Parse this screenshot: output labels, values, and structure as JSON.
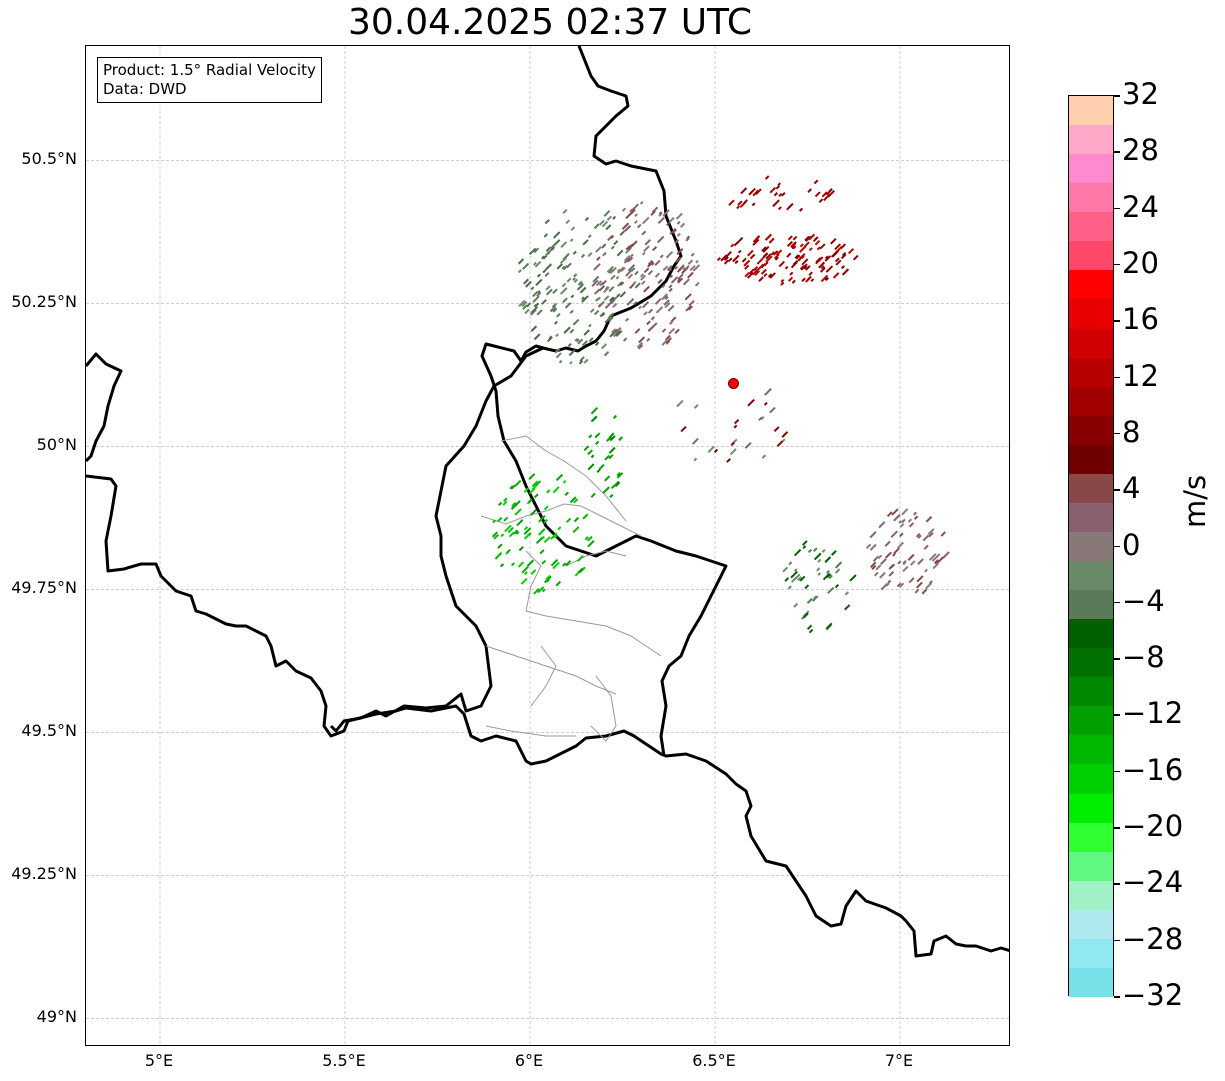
{
  "title": "30.04.2025 02:37 UTC",
  "info": {
    "product": "Product: 1.5° Radial Velocity",
    "data": "Data: DWD"
  },
  "map": {
    "lon_range": [
      4.8,
      7.3
    ],
    "lat_range": [
      48.95,
      50.7
    ],
    "lon_ticks": [
      {
        "value": 5.0,
        "label": "5°E"
      },
      {
        "value": 5.5,
        "label": "5.5°E"
      },
      {
        "value": 6.0,
        "label": "6°E"
      },
      {
        "value": 6.5,
        "label": "6.5°E"
      },
      {
        "value": 7.0,
        "label": "7°E"
      }
    ],
    "lat_ticks": [
      {
        "value": 49.0,
        "label": "49°N"
      },
      {
        "value": 49.25,
        "label": "49.25°N"
      },
      {
        "value": 49.5,
        "label": "49.5°N"
      },
      {
        "value": 49.75,
        "label": "49.75°N"
      },
      {
        "value": 50.0,
        "label": "50°N"
      },
      {
        "value": 50.25,
        "label": "50.25°N"
      },
      {
        "value": 50.5,
        "label": "50.5°N"
      }
    ],
    "grid": true,
    "radar_site": {
      "lon": 6.55,
      "lat": 50.11,
      "color": "#ff0000"
    }
  },
  "colorbar": {
    "label": "m/s",
    "min": -32,
    "max": 32,
    "ticks": [
      "32",
      "28",
      "24",
      "20",
      "16",
      "12",
      "8",
      "4",
      "0",
      "−4",
      "−8",
      "−12",
      "−16",
      "−20",
      "−24",
      "−28",
      "−32"
    ],
    "colors_top_to_bottom": [
      "#ffcfb0",
      "#ffa8c8",
      "#ff8ad0",
      "#ff78a8",
      "#ff6088",
      "#ff4868",
      "#ff0000",
      "#e80000",
      "#d00000",
      "#b80000",
      "#a00000",
      "#880000",
      "#700000",
      "#884848",
      "#886070",
      "#887878",
      "#6a8a6a",
      "#5a7a5a",
      "#006000",
      "#007000",
      "#008800",
      "#00a000",
      "#00b800",
      "#00d000",
      "#00ec00",
      "#30ff30",
      "#60f880",
      "#a0f0c8",
      "#b0e8f0",
      "#90e8f0",
      "#78e0e8"
    ]
  }
}
